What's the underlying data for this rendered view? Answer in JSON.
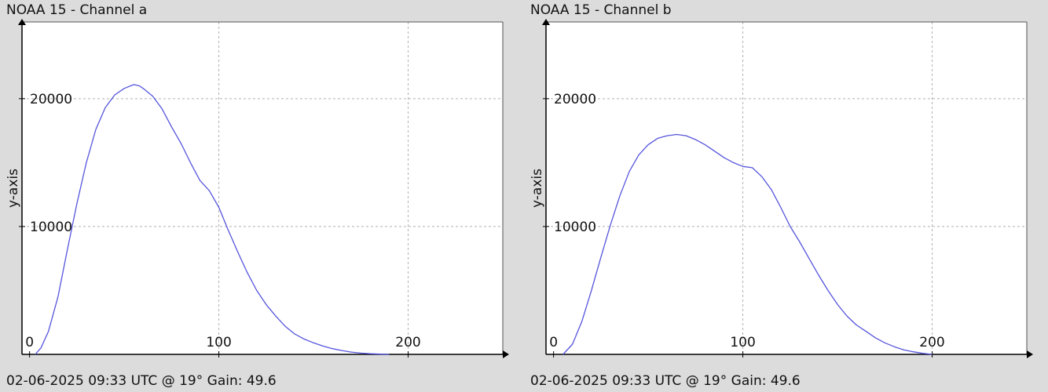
{
  "chart_data": [
    {
      "type": "line",
      "title": "NOAA 15 - Channel a",
      "footer": "02-06-2025 09:33 UTC @ 19° Gain: 49.6",
      "xlabel": "",
      "ylabel": "y-axis",
      "xlim": [
        -4,
        250
      ],
      "ylim": [
        0,
        26000
      ],
      "x_ticks": [
        0,
        100,
        200
      ],
      "x_tick_labels": [
        "0",
        "100",
        "200"
      ],
      "y_ticks": [
        10000,
        20000
      ],
      "y_tick_labels": [
        "10000",
        "20000"
      ],
      "grid": true,
      "color": "#5555dd",
      "series": [
        {
          "x": [
            3,
            6,
            10,
            15,
            20,
            25,
            30,
            35,
            40,
            45,
            50,
            55,
            58,
            60,
            65,
            70,
            75,
            80,
            85,
            90,
            95,
            100,
            105,
            110,
            115,
            120,
            125,
            130,
            135,
            140,
            145,
            150,
            155,
            160,
            165,
            170,
            175,
            180,
            185,
            190
          ],
          "values": [
            0,
            500,
            1800,
            4500,
            8200,
            11800,
            15000,
            17600,
            19300,
            20300,
            20800,
            21100,
            21000,
            20800,
            20200,
            19200,
            17800,
            16500,
            15000,
            13600,
            12800,
            11500,
            9700,
            8000,
            6400,
            5000,
            3900,
            3000,
            2200,
            1600,
            1200,
            900,
            650,
            450,
            300,
            180,
            100,
            50,
            20,
            0
          ]
        }
      ]
    },
    {
      "type": "line",
      "title": "NOAA 15 - Channel b",
      "footer": "02-06-2025 09:33 UTC @ 19° Gain: 49.6",
      "xlabel": "",
      "ylabel": "y-axis",
      "xlim": [
        -4,
        250
      ],
      "ylim": [
        0,
        26000
      ],
      "x_ticks": [
        0,
        100,
        200
      ],
      "x_tick_labels": [
        "0",
        "100",
        "200"
      ],
      "y_ticks": [
        10000,
        20000
      ],
      "y_tick_labels": [
        "10000",
        "20000"
      ],
      "grid": true,
      "color": "#5555dd",
      "series": [
        {
          "x": [
            5,
            10,
            15,
            20,
            25,
            30,
            35,
            40,
            45,
            50,
            55,
            60,
            65,
            70,
            75,
            80,
            85,
            90,
            95,
            100,
            105,
            110,
            115,
            120,
            125,
            130,
            135,
            140,
            145,
            150,
            155,
            160,
            165,
            170,
            175,
            180,
            185,
            190,
            195,
            200
          ],
          "values": [
            0,
            800,
            2600,
            5000,
            7600,
            10100,
            12400,
            14300,
            15600,
            16400,
            16900,
            17100,
            17200,
            17100,
            16800,
            16400,
            15900,
            15400,
            15000,
            14700,
            14600,
            13900,
            12900,
            11500,
            10000,
            8800,
            7500,
            6200,
            5000,
            3900,
            3000,
            2300,
            1800,
            1300,
            900,
            600,
            350,
            200,
            80,
            0
          ]
        }
      ]
    }
  ]
}
